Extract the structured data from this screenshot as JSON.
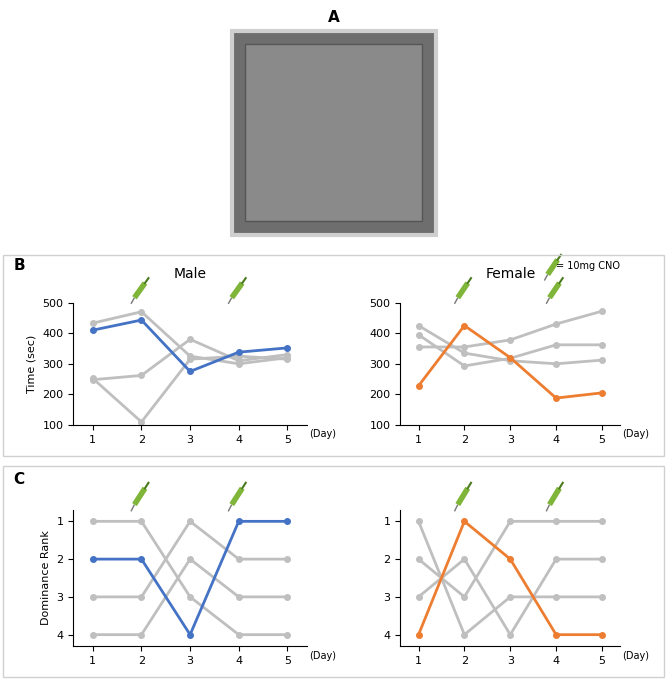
{
  "panel_labels": [
    "A",
    "B",
    "C"
  ],
  "chart_data": [
    {
      "type": "line",
      "title": "Male",
      "ylabel": "Time (sec)",
      "xlabel": "(Day)",
      "x": [
        1,
        2,
        3,
        4,
        5
      ],
      "xlim": [
        0.6,
        5.4
      ],
      "xticks": [
        1,
        2,
        3,
        4,
        5
      ],
      "ylim": [
        100,
        500
      ],
      "yticks": [
        100,
        200,
        300,
        400,
        500
      ],
      "grid": false,
      "marker": "o",
      "line_style": "solid",
      "injection_days": [
        2,
        4
      ],
      "series": [
        {
          "color": "#bfbfbf",
          "values": [
            433,
            470,
            325,
            300,
            320
          ]
        },
        {
          "color": "#bfbfbf",
          "values": [
            248,
            262,
            380,
            310,
            330
          ]
        },
        {
          "color": "#bfbfbf",
          "values": [
            252,
            110,
            315,
            325,
            315
          ]
        },
        {
          "color": "#4472c4",
          "values": [
            410,
            443,
            275,
            338,
            352
          ]
        }
      ]
    },
    {
      "type": "line",
      "title": "Female",
      "xlabel": "(Day)",
      "annotation": "= 10mg CNO",
      "x": [
        1,
        2,
        3,
        4,
        5
      ],
      "xlim": [
        0.6,
        5.4
      ],
      "xticks": [
        1,
        2,
        3,
        4,
        5
      ],
      "ylim": [
        100,
        500
      ],
      "yticks": [
        100,
        200,
        300,
        400,
        500
      ],
      "grid": false,
      "marker": "o",
      "line_style": "solid",
      "injection_days": [
        2,
        4
      ],
      "series": [
        {
          "color": "#bfbfbf",
          "values": [
            425,
            335,
            310,
            300,
            312
          ]
        },
        {
          "color": "#bfbfbf",
          "values": [
            395,
            293,
            318,
            362,
            362
          ]
        },
        {
          "color": "#bfbfbf",
          "values": [
            355,
            355,
            378,
            430,
            472
          ]
        },
        {
          "color": "#ed7d31",
          "values": [
            228,
            425,
            320,
            188,
            205
          ]
        }
      ]
    },
    {
      "type": "line",
      "ylabel": "Dominance Rank",
      "xlabel": "(Day)",
      "x": [
        1,
        2,
        3,
        4,
        5
      ],
      "xlim": [
        0.6,
        5.4
      ],
      "xticks": [
        1,
        2,
        3,
        4,
        5
      ],
      "ylim": [
        4.3,
        0.7
      ],
      "yticks": [
        1,
        2,
        3,
        4
      ],
      "grid": false,
      "marker": "o",
      "line_style": "solid",
      "injection_days": [
        2,
        4
      ],
      "series": [
        {
          "color": "#bfbfbf",
          "values": [
            1,
            1,
            3,
            4,
            4
          ]
        },
        {
          "color": "#bfbfbf",
          "values": [
            3,
            3,
            1,
            2,
            2
          ]
        },
        {
          "color": "#bfbfbf",
          "values": [
            4,
            4,
            2,
            3,
            3
          ]
        },
        {
          "color": "#4472c4",
          "values": [
            2,
            2,
            4,
            1,
            1
          ]
        }
      ]
    },
    {
      "type": "line",
      "xlabel": "(Day)",
      "x": [
        1,
        2,
        3,
        4,
        5
      ],
      "xlim": [
        0.6,
        5.4
      ],
      "xticks": [
        1,
        2,
        3,
        4,
        5
      ],
      "ylim": [
        4.3,
        0.7
      ],
      "yticks": [
        1,
        2,
        3,
        4
      ],
      "grid": false,
      "marker": "o",
      "line_style": "solid",
      "injection_days": [
        2,
        4
      ],
      "series": [
        {
          "color": "#bfbfbf",
          "values": [
            1,
            4,
            3,
            3,
            3
          ]
        },
        {
          "color": "#bfbfbf",
          "values": [
            2,
            3,
            1,
            1,
            1
          ]
        },
        {
          "color": "#bfbfbf",
          "values": [
            3,
            2,
            4,
            2,
            2
          ]
        },
        {
          "color": "#ed7d31",
          "values": [
            4,
            1,
            2,
            4,
            4
          ]
        }
      ]
    }
  ]
}
